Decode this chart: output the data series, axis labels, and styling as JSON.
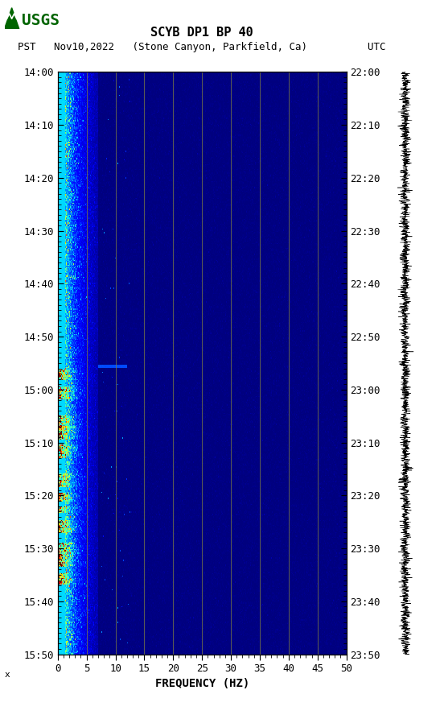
{
  "title_line1": "SCYB DP1 BP 40",
  "title_line2_pst": "PST   Nov10,2022   (Stone Canyon, Parkfield, Ca)          UTC",
  "xlabel": "FREQUENCY (HZ)",
  "freq_min": 0,
  "freq_max": 50,
  "pst_ticks": [
    "14:00",
    "14:10",
    "14:20",
    "14:30",
    "14:40",
    "14:50",
    "15:00",
    "15:10",
    "15:20",
    "15:30",
    "15:40",
    "15:50"
  ],
  "utc_ticks": [
    "22:00",
    "22:10",
    "22:20",
    "22:30",
    "22:40",
    "22:50",
    "23:00",
    "23:10",
    "23:20",
    "23:30",
    "23:40",
    "23:50"
  ],
  "freq_ticks": [
    0,
    5,
    10,
    15,
    20,
    25,
    30,
    35,
    40,
    45,
    50
  ],
  "background_color": "#ffffff",
  "colormap": "jet",
  "vert_lines_freq": [
    5,
    10,
    15,
    20,
    25,
    30,
    35,
    40,
    45
  ],
  "vert_line_color": "#808040",
  "figsize": [
    5.52,
    8.93
  ],
  "dpi": 100,
  "logo_color": "#006400",
  "usgs_text": "USGS"
}
